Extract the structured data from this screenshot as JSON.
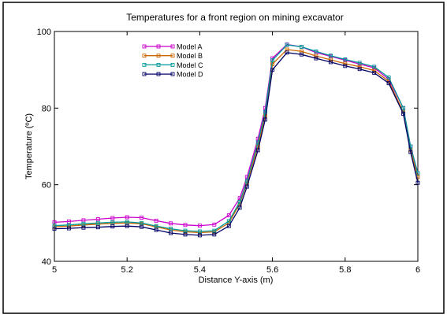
{
  "chart_data": {
    "type": "line",
    "title": "Temperatures for a front region on mining excavator",
    "xlabel": "Distance Y-axis (m)",
    "ylabel": "Temperature (ºC)",
    "xlim": [
      5,
      6
    ],
    "ylim": [
      40,
      100
    ],
    "x_ticks": [
      5,
      5.2,
      5.4,
      5.6,
      5.8,
      6
    ],
    "x_tick_labels": [
      "5",
      "5.2",
      "5.4",
      "5.6",
      "5.8",
      "6"
    ],
    "y_ticks": [
      40,
      60,
      80,
      100
    ],
    "y_tick_labels": [
      "40",
      "60",
      "80",
      "100"
    ],
    "grid": false,
    "legend_position": "top-left",
    "x": [
      5.0,
      5.04,
      5.08,
      5.12,
      5.16,
      5.2,
      5.24,
      5.28,
      5.32,
      5.36,
      5.4,
      5.44,
      5.48,
      5.51,
      5.53,
      5.56,
      5.58,
      5.6,
      5.64,
      5.68,
      5.72,
      5.76,
      5.8,
      5.84,
      5.88,
      5.92,
      5.96,
      5.98,
      6.0
    ],
    "series": [
      {
        "name": "Model A",
        "color": "#cc00cc",
        "values": [
          50.2,
          50.4,
          50.7,
          51.0,
          51.3,
          51.5,
          51.4,
          50.6,
          49.9,
          49.5,
          49.3,
          49.6,
          52.0,
          56.5,
          62.0,
          72.0,
          80.0,
          93.0,
          96.6,
          96.0,
          94.5,
          93.5,
          92.5,
          91.5,
          90.5,
          87.5,
          80.0,
          70.0,
          63.0
        ]
      },
      {
        "name": "Model B",
        "color": "#cc6600",
        "values": [
          49.0,
          49.2,
          49.5,
          49.7,
          49.9,
          50.0,
          49.8,
          49.0,
          48.2,
          47.7,
          47.5,
          47.7,
          50.0,
          55.0,
          60.5,
          70.0,
          78.0,
          91.5,
          95.3,
          94.8,
          93.6,
          92.6,
          91.6,
          90.8,
          89.8,
          87.0,
          79.0,
          69.0,
          62.0
        ]
      },
      {
        "name": "Model C",
        "color": "#009999",
        "values": [
          49.3,
          49.5,
          49.8,
          50.0,
          50.2,
          50.3,
          50.0,
          49.2,
          48.5,
          48.0,
          47.8,
          48.0,
          50.5,
          55.5,
          61.0,
          71.0,
          79.0,
          92.5,
          96.5,
          96.0,
          94.8,
          93.7,
          92.7,
          91.8,
          90.8,
          88.0,
          80.0,
          70.0,
          63.0
        ]
      },
      {
        "name": "Model D",
        "color": "#000066",
        "values": [
          48.5,
          48.6,
          48.8,
          48.9,
          49.1,
          49.2,
          49.0,
          48.2,
          47.4,
          47.0,
          46.8,
          47.0,
          49.2,
          54.0,
          59.5,
          69.0,
          77.0,
          90.0,
          94.5,
          94.0,
          93.0,
          92.0,
          91.0,
          90.2,
          89.2,
          86.5,
          78.5,
          68.5,
          60.5
        ]
      }
    ]
  }
}
